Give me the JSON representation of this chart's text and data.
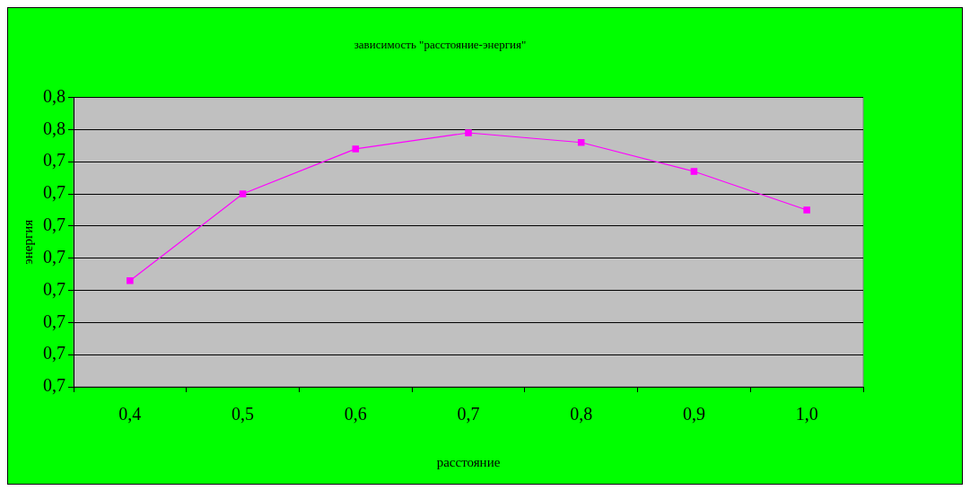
{
  "chart_data": {
    "type": "line",
    "title": "зависимость \"расстояние-энергия\"",
    "xlabel": "расстояние",
    "ylabel": "энергия",
    "categories": [
      "0,4",
      "0,5",
      "0,6",
      "0,7",
      "0,8",
      "0,9",
      "1,0"
    ],
    "series": [
      {
        "color": "#ff00ff",
        "values": [
          0.703,
          0.73,
          0.744,
          0.749,
          0.746,
          0.737,
          0.725
        ]
      }
    ],
    "ylim": [
      0.67,
      0.76
    ],
    "yticks": [
      {
        "value": 0.67,
        "label": "0,7"
      },
      {
        "value": 0.68,
        "label": "0,7"
      },
      {
        "value": 0.69,
        "label": "0,7"
      },
      {
        "value": 0.7,
        "label": "0,7"
      },
      {
        "value": 0.71,
        "label": "0,7"
      },
      {
        "value": 0.72,
        "label": "0,7"
      },
      {
        "value": 0.73,
        "label": "0,7"
      },
      {
        "value": 0.74,
        "label": "0,7"
      },
      {
        "value": 0.75,
        "label": "0,8"
      },
      {
        "value": 0.76,
        "label": "0,8"
      }
    ],
    "grid": "y",
    "legend": false,
    "marker": "square",
    "line_style": "solid"
  }
}
